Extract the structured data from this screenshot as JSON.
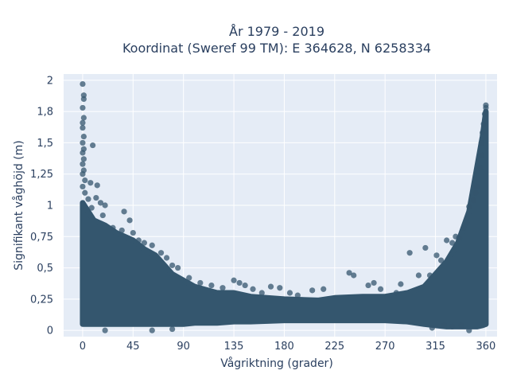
{
  "chart_data": {
    "type": "scatter",
    "title_line1": "År 1979 - 2019",
    "title_line2": "Koordinat (Sweref 99 TM): E 364628, N 6258334",
    "xlabel": "Vågriktning (grader)",
    "ylabel": "Signifikant våghöjd (m)",
    "xlim": [
      -17,
      370
    ],
    "ylim": [
      -0.05,
      2.05
    ],
    "x_ticks": [
      0,
      45,
      90,
      135,
      180,
      225,
      270,
      315,
      360
    ],
    "x_tick_labels": [
      "0",
      "45",
      "90",
      "135",
      "180",
      "225",
      "270",
      "315",
      "360"
    ],
    "y_ticks": [
      0,
      0.25,
      0.5,
      0.75,
      1,
      1.25,
      1.5,
      1.75,
      2
    ],
    "y_tick_labels": [
      "0",
      "0,25",
      "0,5",
      "0,75",
      "1",
      "1,25",
      "1,5",
      "1,8",
      "2"
    ],
    "grid": true,
    "marker_color": "#34566e",
    "plot_bg": "#e5ecf6",
    "envelope": [
      {
        "x": 0,
        "ymin": 0.05,
        "ymax": 1.02
      },
      {
        "x": 5,
        "ymin": 0.05,
        "ymax": 0.95
      },
      {
        "x": 10,
        "ymin": 0.05,
        "ymax": 0.88
      },
      {
        "x": 20,
        "ymin": 0.05,
        "ymax": 0.84
      },
      {
        "x": 30,
        "ymin": 0.05,
        "ymax": 0.78
      },
      {
        "x": 45,
        "ymin": 0.05,
        "ymax": 0.72
      },
      {
        "x": 55,
        "ymin": 0.05,
        "ymax": 0.65
      },
      {
        "x": 65,
        "ymin": 0.05,
        "ymax": 0.6
      },
      {
        "x": 80,
        "ymin": 0.05,
        "ymax": 0.45
      },
      {
        "x": 90,
        "ymin": 0.05,
        "ymax": 0.4
      },
      {
        "x": 100,
        "ymin": 0.06,
        "ymax": 0.35
      },
      {
        "x": 120,
        "ymin": 0.06,
        "ymax": 0.3
      },
      {
        "x": 135,
        "ymin": 0.07,
        "ymax": 0.3
      },
      {
        "x": 150,
        "ymin": 0.07,
        "ymax": 0.27
      },
      {
        "x": 180,
        "ymin": 0.08,
        "ymax": 0.25
      },
      {
        "x": 210,
        "ymin": 0.08,
        "ymax": 0.24
      },
      {
        "x": 225,
        "ymin": 0.08,
        "ymax": 0.26
      },
      {
        "x": 250,
        "ymin": 0.08,
        "ymax": 0.27
      },
      {
        "x": 270,
        "ymin": 0.08,
        "ymax": 0.27
      },
      {
        "x": 290,
        "ymin": 0.07,
        "ymax": 0.3
      },
      {
        "x": 305,
        "ymin": 0.05,
        "ymax": 0.35
      },
      {
        "x": 315,
        "ymin": 0.04,
        "ymax": 0.45
      },
      {
        "x": 325,
        "ymin": 0.03,
        "ymax": 0.55
      },
      {
        "x": 335,
        "ymin": 0.03,
        "ymax": 0.7
      },
      {
        "x": 345,
        "ymin": 0.03,
        "ymax": 0.95
      },
      {
        "x": 352,
        "ymin": 0.03,
        "ymax": 1.3
      },
      {
        "x": 357,
        "ymin": 0.04,
        "ymax": 1.55
      },
      {
        "x": 360,
        "ymin": 0.05,
        "ymax": 1.75
      }
    ],
    "points": [
      [
        0,
        1.97
      ],
      [
        1,
        1.88
      ],
      [
        1,
        1.85
      ],
      [
        0,
        1.78
      ],
      [
        1,
        1.7
      ],
      [
        0,
        1.66
      ],
      [
        0,
        1.62
      ],
      [
        1,
        1.55
      ],
      [
        0,
        1.5
      ],
      [
        1,
        1.45
      ],
      [
        0,
        1.42
      ],
      [
        9,
        1.48
      ],
      [
        1,
        1.37
      ],
      [
        0,
        1.33
      ],
      [
        1,
        1.28
      ],
      [
        0,
        1.25
      ],
      [
        2,
        1.2
      ],
      [
        0,
        1.15
      ],
      [
        7,
        1.18
      ],
      [
        13,
        1.16
      ],
      [
        2,
        1.1
      ],
      [
        5,
        1.05
      ],
      [
        12,
        1.06
      ],
      [
        16,
        1.02
      ],
      [
        20,
        1.0
      ],
      [
        8,
        0.98
      ],
      [
        18,
        0.92
      ],
      [
        37,
        0.95
      ],
      [
        42,
        0.88
      ],
      [
        27,
        0.82
      ],
      [
        35,
        0.8
      ],
      [
        45,
        0.78
      ],
      [
        50,
        0.72
      ],
      [
        55,
        0.7
      ],
      [
        62,
        0.68
      ],
      [
        70,
        0.62
      ],
      [
        75,
        0.58
      ],
      [
        80,
        0.52
      ],
      [
        85,
        0.5
      ],
      [
        95,
        0.42
      ],
      [
        105,
        0.38
      ],
      [
        115,
        0.36
      ],
      [
        125,
        0.34
      ],
      [
        135,
        0.4
      ],
      [
        140,
        0.38
      ],
      [
        145,
        0.36
      ],
      [
        152,
        0.33
      ],
      [
        160,
        0.3
      ],
      [
        168,
        0.35
      ],
      [
        176,
        0.34
      ],
      [
        185,
        0.3
      ],
      [
        192,
        0.28
      ],
      [
        205,
        0.32
      ],
      [
        215,
        0.33
      ],
      [
        238,
        0.46
      ],
      [
        242,
        0.44
      ],
      [
        255,
        0.36
      ],
      [
        260,
        0.38
      ],
      [
        266,
        0.33
      ],
      [
        280,
        0.3
      ],
      [
        284,
        0.37
      ],
      [
        292,
        0.62
      ],
      [
        300,
        0.44
      ],
      [
        306,
        0.66
      ],
      [
        310,
        0.44
      ],
      [
        316,
        0.6
      ],
      [
        320,
        0.56
      ],
      [
        325,
        0.72
      ],
      [
        330,
        0.7
      ],
      [
        333,
        0.75
      ],
      [
        336,
        0.74
      ],
      [
        340,
        0.82
      ],
      [
        343,
        0.86
      ],
      [
        345,
        0.99
      ],
      [
        349,
        1.04
      ],
      [
        351,
        1.1
      ],
      [
        352,
        1.15
      ],
      [
        355,
        1.3
      ],
      [
        356,
        1.4
      ],
      [
        356,
        1.5
      ],
      [
        357,
        1.58
      ],
      [
        358,
        1.65
      ],
      [
        359,
        1.73
      ],
      [
        360,
        1.8
      ],
      [
        360,
        1.78
      ],
      [
        323,
        0.04
      ],
      [
        330,
        0.03
      ],
      [
        338,
        0.04
      ],
      [
        20,
        0.0
      ],
      [
        62,
        0.0
      ],
      [
        80,
        0.01
      ],
      [
        345,
        0.0
      ],
      [
        312,
        0.02
      ]
    ]
  }
}
